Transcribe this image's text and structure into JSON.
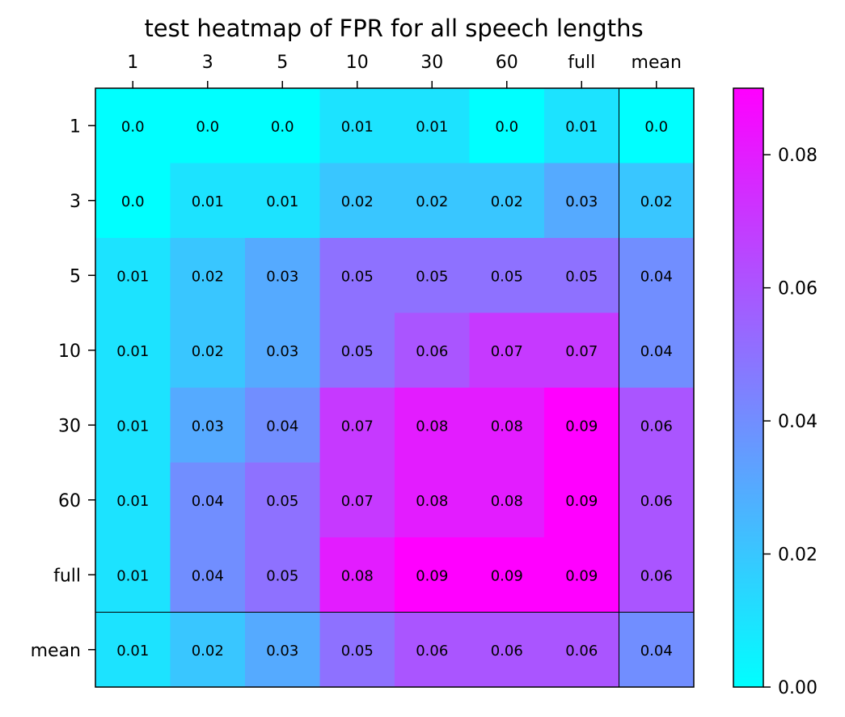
{
  "chart_data": {
    "type": "heatmap",
    "title": "test heatmap of FPR for all speech lengths",
    "x_categories": [
      "1",
      "3",
      "5",
      "10",
      "30",
      "60",
      "full",
      "mean"
    ],
    "y_categories": [
      "1",
      "3",
      "5",
      "10",
      "30",
      "60",
      "full",
      "mean"
    ],
    "values": [
      [
        0.0,
        0.0,
        0.0,
        0.01,
        0.01,
        0.0,
        0.01,
        0.0
      ],
      [
        0.0,
        0.01,
        0.01,
        0.02,
        0.02,
        0.02,
        0.03,
        0.02
      ],
      [
        0.01,
        0.02,
        0.03,
        0.05,
        0.05,
        0.05,
        0.05,
        0.04
      ],
      [
        0.01,
        0.02,
        0.03,
        0.05,
        0.06,
        0.07,
        0.07,
        0.04
      ],
      [
        0.01,
        0.03,
        0.04,
        0.07,
        0.08,
        0.08,
        0.09,
        0.06
      ],
      [
        0.01,
        0.04,
        0.05,
        0.07,
        0.08,
        0.08,
        0.09,
        0.06
      ],
      [
        0.01,
        0.04,
        0.05,
        0.08,
        0.09,
        0.09,
        0.09,
        0.06
      ],
      [
        0.01,
        0.02,
        0.03,
        0.05,
        0.06,
        0.06,
        0.06,
        0.04
      ]
    ],
    "value_labels": [
      [
        "0.0",
        "0.0",
        "0.0",
        "0.01",
        "0.01",
        "0.0",
        "0.01",
        "0.0"
      ],
      [
        "0.0",
        "0.01",
        "0.01",
        "0.02",
        "0.02",
        "0.02",
        "0.03",
        "0.02"
      ],
      [
        "0.01",
        "0.02",
        "0.03",
        "0.05",
        "0.05",
        "0.05",
        "0.05",
        "0.04"
      ],
      [
        "0.01",
        "0.02",
        "0.03",
        "0.05",
        "0.06",
        "0.07",
        "0.07",
        "0.04"
      ],
      [
        "0.01",
        "0.03",
        "0.04",
        "0.07",
        "0.08",
        "0.08",
        "0.09",
        "0.06"
      ],
      [
        "0.01",
        "0.04",
        "0.05",
        "0.07",
        "0.08",
        "0.08",
        "0.09",
        "0.06"
      ],
      [
        "0.01",
        "0.04",
        "0.05",
        "0.08",
        "0.09",
        "0.09",
        "0.09",
        "0.06"
      ],
      [
        "0.01",
        "0.02",
        "0.03",
        "0.05",
        "0.06",
        "0.06",
        "0.06",
        "0.04"
      ]
    ],
    "colormap": "cool",
    "color_low": "#00ffff",
    "color_high": "#ff00ff",
    "color_range": [
      0.0,
      0.09
    ],
    "colorbar_ticks": [
      "0.00",
      "0.02",
      "0.04",
      "0.06",
      "0.08"
    ],
    "colorbar_tick_values": [
      0.0,
      0.02,
      0.04,
      0.06,
      0.08
    ],
    "x_axis_position": "top",
    "grid": false,
    "separator_lines": true
  }
}
